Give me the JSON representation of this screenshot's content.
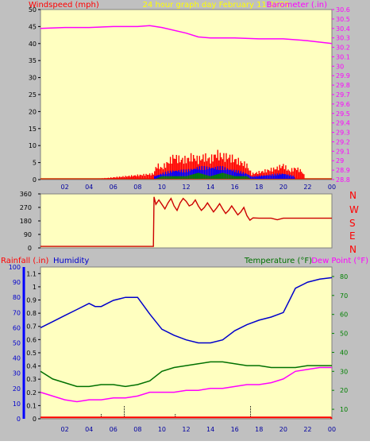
{
  "header": {
    "left_label": "Windspeed (mph)",
    "center_label": "24 hour graph day   February 11 2025",
    "right_label": "Barometer (.in)"
  },
  "direction_labels": [
    "N",
    "W",
    "S",
    "E",
    "N"
  ],
  "bottom_header": {
    "rainfall_label": "Rainfall (.in)",
    "humidity_label": "Humidity",
    "temperature_label": "Temperature (°F)",
    "dewpoint_label": "Dew Point (°F)"
  },
  "colors": {
    "plot_bg": "#ffffc0",
    "frame": "#c0c0c0",
    "wind_gust": "#ff0000",
    "wind_avg": "#0000ff",
    "wind_low": "#008000",
    "barometer": "#ff00ff",
    "direction": "#cc0000",
    "humidity": "#0000cc",
    "temperature": "#007000",
    "dewpoint": "#ff00ff",
    "rainfall": "#ff0000"
  },
  "chart_data": [
    {
      "type": "bar",
      "title": "24 hour graph day   February 11 2025",
      "x_tick_labels": [
        "02",
        "04",
        "06",
        "08",
        "10",
        "12",
        "14",
        "16",
        "18",
        "20",
        "22",
        "00"
      ],
      "left_axis": {
        "label": "Windspeed (mph)",
        "ylim": [
          0,
          50
        ],
        "ticks": [
          "0",
          "5",
          "10",
          "15",
          "20",
          "25",
          "30",
          "35",
          "40",
          "45",
          "50"
        ]
      },
      "right_axis": {
        "label": "Barometer (.in)",
        "ylim": [
          28.8,
          30.6
        ],
        "ticks": [
          "28.8",
          "28.9",
          "29",
          "29.1",
          "29.2",
          "29.3",
          "29.4",
          "29.5",
          "29.6",
          "29.7",
          "29.8",
          "29.9",
          "30",
          "30.1",
          "30.2",
          "30.3",
          "30.4",
          "30.5",
          "30.6"
        ]
      },
      "series": [
        {
          "name": "Barometer",
          "x": [
            0,
            2,
            4,
            6,
            8,
            9,
            10,
            12,
            13,
            14,
            16,
            18,
            20,
            22,
            24
          ],
          "values": [
            30.4,
            30.41,
            30.41,
            30.42,
            30.42,
            30.43,
            30.41,
            30.35,
            30.31,
            30.3,
            30.3,
            30.29,
            30.29,
            30.27,
            30.24
          ]
        },
        {
          "name": "Wind gust",
          "x": [
            0,
            3.9,
            3.95,
            4.0,
            9.3,
            9.6,
            10.0,
            10.5,
            11.0,
            11.5,
            12.0,
            12.5,
            13.0,
            13.5,
            14.0,
            14.5,
            15.0,
            15.5,
            16.0,
            16.5,
            17.0,
            17.4,
            19.5,
            20.0,
            20.5,
            21.0,
            21.5,
            21.8
          ],
          "values": [
            0,
            0,
            3,
            0,
            2,
            5,
            4,
            6,
            8,
            7,
            7,
            8,
            7,
            8,
            7,
            9,
            8,
            8,
            7,
            6,
            5,
            2,
            4,
            5,
            3,
            4,
            3,
            1
          ]
        },
        {
          "name": "Wind average",
          "x": [
            9.3,
            10,
            11,
            12,
            13,
            14,
            15,
            16,
            17,
            17.4,
            20,
            21
          ],
          "values": [
            1,
            2,
            3,
            3,
            4,
            4,
            4,
            3,
            2,
            1,
            2,
            1
          ]
        },
        {
          "name": "Wind low",
          "x": [
            9.3,
            10,
            11,
            12,
            13,
            14,
            15,
            16,
            17,
            17.4
          ],
          "values": [
            0,
            1,
            1,
            1,
            2,
            1,
            2,
            1,
            1,
            0
          ]
        }
      ]
    },
    {
      "type": "line",
      "title": "Wind direction",
      "ylim": [
        0,
        360
      ],
      "y_ticks": [
        "0",
        "90",
        "180",
        "270",
        "360"
      ],
      "series": [
        {
          "name": "Direction",
          "x": [
            0,
            9.3,
            9.35,
            9.5,
            10,
            10.5,
            11,
            11.5,
            12,
            12.5,
            13,
            13.5,
            14,
            14.5,
            15,
            15.5,
            16,
            16.5,
            17,
            17.5,
            18,
            19,
            19.5,
            20,
            22,
            24
          ],
          "values": [
            10,
            10,
            340,
            290,
            290,
            300,
            280,
            300,
            310,
            290,
            280,
            270,
            270,
            265,
            260,
            250,
            250,
            240,
            215,
            200,
            198,
            198,
            188,
            198,
            198,
            198
          ]
        }
      ]
    },
    {
      "type": "line",
      "title": "",
      "x_tick_labels": [
        "02",
        "04",
        "06",
        "08",
        "10",
        "12",
        "14",
        "16",
        "18",
        "20",
        "22",
        "00"
      ],
      "left_axis": {
        "label": "Rainfall (.in)",
        "ylim": [
          0,
          1.15
        ],
        "ticks": [
          "0",
          "0.1",
          "0.2",
          "0.3",
          "0.4",
          "0.5",
          "0.6",
          "0.7",
          "0.8",
          "0.9",
          "1",
          "1.1"
        ]
      },
      "humidity_axis": {
        "label": "Humidity",
        "ylim": [
          0,
          100
        ],
        "ticks": [
          "0",
          "10",
          "20",
          "30",
          "40",
          "50",
          "60",
          "70",
          "80",
          "90",
          "100"
        ]
      },
      "right_axis": {
        "label": "Temperature (°F)",
        "ylim": [
          5,
          85
        ],
        "ticks": [
          "10",
          "20",
          "30",
          "40",
          "50",
          "60",
          "70",
          "80"
        ]
      },
      "series": [
        {
          "name": "Humidity",
          "axis": "humidity",
          "x": [
            0,
            1,
            2,
            3,
            4,
            4.5,
            5,
            5.5,
            6,
            6.5,
            7,
            8,
            9,
            10,
            11,
            12,
            13,
            14,
            15,
            16,
            17,
            18,
            19,
            20,
            20.5,
            21,
            22,
            23,
            24
          ],
          "values": [
            60,
            64,
            68,
            72,
            76,
            74,
            74,
            76,
            78,
            79,
            80,
            80,
            69,
            59,
            55,
            52,
            50,
            50,
            52,
            58,
            62,
            65,
            67,
            70,
            78,
            86,
            90,
            92,
            93
          ]
        },
        {
          "name": "Temperature",
          "axis": "right",
          "x": [
            0,
            1,
            2,
            3,
            4,
            5,
            6,
            7,
            8,
            9,
            10,
            11,
            12,
            13,
            14,
            15,
            16,
            17,
            18,
            19,
            20,
            21,
            22,
            23,
            24
          ],
          "values": [
            30,
            26,
            24,
            22,
            22,
            23,
            23,
            22,
            23,
            25,
            30,
            32,
            33,
            34,
            35,
            35,
            34,
            33,
            33,
            32,
            32,
            32,
            33,
            33,
            33
          ]
        },
        {
          "name": "Dew Point",
          "axis": "right",
          "x": [
            0,
            1,
            2,
            3,
            4,
            5,
            6,
            7,
            8,
            9,
            10,
            11,
            12,
            13,
            14,
            15,
            16,
            17,
            18,
            19,
            20,
            21,
            22,
            23,
            24
          ],
          "values": [
            19,
            17,
            15,
            14,
            15,
            15,
            16,
            16,
            17,
            19,
            19,
            19,
            20,
            20,
            21,
            21,
            22,
            23,
            23,
            24,
            26,
            30,
            31,
            32,
            32
          ]
        },
        {
          "name": "Rainfall",
          "axis": "left",
          "x": [
            0,
            14.0,
            20.0,
            23.9,
            24
          ],
          "values": [
            0.01,
            0.01,
            0.01,
            0.01,
            0
          ]
        }
      ]
    }
  ]
}
